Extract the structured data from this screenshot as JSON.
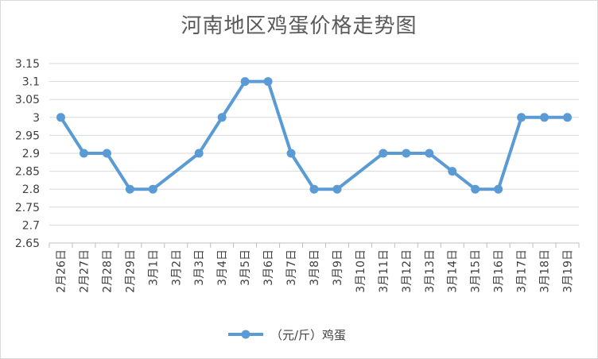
{
  "chart_data": {
    "type": "line",
    "title": "河南地区鸡蛋价格走势图",
    "xlabel": "",
    "ylabel": "",
    "ylim": [
      2.65,
      3.15
    ],
    "yticks": [
      "2.65",
      "2.7",
      "2.75",
      "2.8",
      "2.85",
      "2.9",
      "2.95",
      "3",
      "3.05",
      "3.1",
      "3.15"
    ],
    "categories": [
      "2月26日",
      "2月27日",
      "2月28日",
      "2月29日",
      "3月1日",
      "3月2日",
      "3月3日",
      "3月4日",
      "3月5日",
      "3月6日",
      "3月7日",
      "3月8日",
      "3月9日",
      "3月10日",
      "3月11日",
      "3月12日",
      "3月13日",
      "3月14日",
      "3月15日",
      "3月16日",
      "3月17日",
      "3月18日",
      "3月19日"
    ],
    "series": [
      {
        "name": "（元/斤）鸡蛋",
        "color": "#5b9bd5",
        "points": [
          {
            "x": "2月26日",
            "y": 3.0
          },
          {
            "x": "2月27日",
            "y": 2.9
          },
          {
            "x": "2月28日",
            "y": 2.9
          },
          {
            "x": "2月29日",
            "y": 2.8
          },
          {
            "x": "3月1日",
            "y": 2.8
          },
          {
            "x": "3月3日",
            "y": 2.9
          },
          {
            "x": "3月4日",
            "y": 3.0
          },
          {
            "x": "3月5日",
            "y": 3.1
          },
          {
            "x": "3月6日",
            "y": 3.1
          },
          {
            "x": "3月7日",
            "y": 2.9
          },
          {
            "x": "3月8日",
            "y": 2.8
          },
          {
            "x": "3月9日",
            "y": 2.8
          },
          {
            "x": "3月11日",
            "y": 2.9
          },
          {
            "x": "3月12日",
            "y": 2.9
          },
          {
            "x": "3月13日",
            "y": 2.9
          },
          {
            "x": "3月14日",
            "y": 2.85
          },
          {
            "x": "3月15日",
            "y": 2.8
          },
          {
            "x": "3月16日",
            "y": 2.8
          },
          {
            "x": "3月17日",
            "y": 3.0
          },
          {
            "x": "3月18日",
            "y": 3.0
          },
          {
            "x": "3月19日",
            "y": 3.0
          }
        ]
      }
    ],
    "grid": true,
    "legend": "bottom"
  }
}
